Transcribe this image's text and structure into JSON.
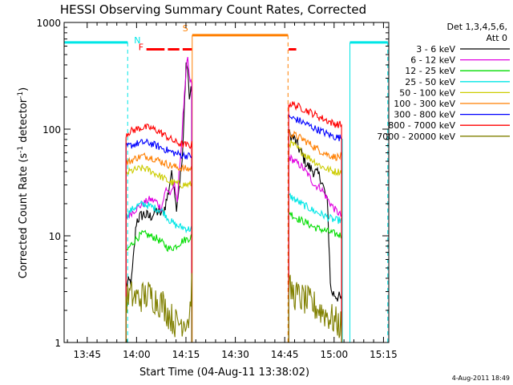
{
  "chart_data": {
    "type": "line",
    "title": "HESSI Observing Summary Count Rates, Corrected",
    "xlabel": "Start Time (04-Aug-11 13:38:02)",
    "ylabel_main": "Corrected Count Rate (s",
    "ylabel_sup1": "-1",
    "ylabel_mid": " detector",
    "ylabel_sup2": "-1",
    "ylabel_end": ")",
    "yscale": "log",
    "ylim": [
      1,
      1000
    ],
    "xlim_minutes": [
      38.0,
      86.5
    ],
    "x_ticks": [
      {
        "m": 45,
        "label": "13:45"
      },
      {
        "m": 60,
        "label": "14:00"
      },
      {
        "m": 75,
        "label": "14:15"
      },
      {
        "m": 90,
        "label": "14:30"
      },
      {
        "m": 105,
        "label": "14:45"
      },
      {
        "m": 120,
        "label": "15:00"
      },
      {
        "m": 135,
        "label": "15:15"
      }
    ],
    "y_ticks": [
      {
        "v": 1,
        "label": "1"
      },
      {
        "v": 10,
        "label": "10"
      },
      {
        "v": 100,
        "label": "100"
      },
      {
        "v": 1000,
        "label": "1000"
      }
    ],
    "legend": {
      "header1": "Det 1,3,4,5,6,",
      "header2": "Att 0",
      "entries": [
        {
          "label": "3 - 6 keV",
          "color": "#000000"
        },
        {
          "label": "6 - 12 keV",
          "color": "#e000e0"
        },
        {
          "label": "12 - 25 keV",
          "color": "#00dd00"
        },
        {
          "label": "25 - 50 keV",
          "color": "#00e6e6"
        },
        {
          "label": "50 - 100 keV",
          "color": "#cccc00"
        },
        {
          "label": "100 - 300 keV",
          "color": "#ff7f00"
        },
        {
          "label": "300 - 800 keV",
          "color": "#0000ff"
        },
        {
          "label": "800 - 7000 keV",
          "color": "#ff0000"
        },
        {
          "label": "7000 - 20000 keV",
          "color": "#808000"
        }
      ]
    },
    "segments": [
      {
        "start": 56.8,
        "end": 76.9
      },
      {
        "start": 106.2,
        "end": 122.5
      }
    ],
    "series": [
      {
        "name": "3 - 6 keV",
        "color": "#000000",
        "points": [
          [
            56.8,
            3.5
          ],
          [
            58.5,
            3.8
          ],
          [
            60,
            14
          ],
          [
            62,
            16
          ],
          [
            64,
            15
          ],
          [
            66,
            17
          ],
          [
            68,
            16
          ],
          [
            69.5,
            24
          ],
          [
            70.5,
            38
          ],
          [
            71.5,
            30
          ],
          [
            72,
            18
          ],
          [
            73,
            30
          ],
          [
            74,
            55
          ],
          [
            75,
            420
          ],
          [
            75.5,
            380
          ],
          [
            76,
            200
          ],
          [
            76.9,
            240
          ],
          [
            106.2,
            90
          ],
          [
            108,
            80
          ],
          [
            110,
            60
          ],
          [
            112,
            45
          ],
          [
            114,
            40
          ],
          [
            116,
            35
          ],
          [
            118,
            20
          ],
          [
            119,
            3
          ],
          [
            122.5,
            2.5
          ]
        ]
      },
      {
        "name": "6 - 12 keV",
        "color": "#e000e0",
        "points": [
          [
            56.8,
            15
          ],
          [
            58,
            16
          ],
          [
            60,
            18
          ],
          [
            62,
            20
          ],
          [
            64,
            22
          ],
          [
            66,
            21
          ],
          [
            67.5,
            18
          ],
          [
            69,
            28
          ],
          [
            70.5,
            24
          ],
          [
            71.5,
            32
          ],
          [
            72.5,
            20
          ],
          [
            73,
            45
          ],
          [
            73.5,
            60
          ],
          [
            74,
            120
          ],
          [
            75.5,
            500
          ],
          [
            76,
            300
          ],
          [
            76.9,
            260
          ],
          [
            106.2,
            55
          ],
          [
            108,
            50
          ],
          [
            110,
            45
          ],
          [
            112,
            38
          ],
          [
            114,
            30
          ],
          [
            116,
            28
          ],
          [
            117,
            25
          ],
          [
            118,
            22
          ],
          [
            120,
            18
          ],
          [
            122.5,
            15
          ]
        ]
      },
      {
        "name": "12 - 25 keV",
        "color": "#00dd00",
        "points": [
          [
            56.8,
            7
          ],
          [
            58,
            8
          ],
          [
            60,
            9.5
          ],
          [
            62,
            10.5
          ],
          [
            64,
            10
          ],
          [
            66,
            9.5
          ],
          [
            68,
            8.5
          ],
          [
            70,
            7.5
          ],
          [
            72,
            8
          ],
          [
            74,
            9
          ],
          [
            76,
            9.5
          ],
          [
            76.9,
            10
          ],
          [
            106.2,
            17
          ],
          [
            108,
            15
          ],
          [
            110,
            14
          ],
          [
            112,
            13
          ],
          [
            114,
            12
          ],
          [
            116,
            11.5
          ],
          [
            118,
            11
          ],
          [
            120,
            10.5
          ],
          [
            122.5,
            10
          ]
        ]
      },
      {
        "name": "25 - 50 keV",
        "color": "#00e6e6",
        "points": [
          [
            56.8,
            15
          ],
          [
            58,
            17
          ],
          [
            60,
            19
          ],
          [
            62,
            20
          ],
          [
            64,
            19
          ],
          [
            66,
            18
          ],
          [
            68,
            17
          ],
          [
            70,
            14
          ],
          [
            72,
            12.5
          ],
          [
            74,
            12
          ],
          [
            76,
            11.5
          ],
          [
            76.9,
            12
          ],
          [
            106.2,
            24
          ],
          [
            108,
            22
          ],
          [
            110,
            20
          ],
          [
            112,
            18.5
          ],
          [
            114,
            17
          ],
          [
            116,
            16
          ],
          [
            118,
            15
          ],
          [
            120,
            14
          ],
          [
            122.5,
            14
          ]
        ]
      },
      {
        "name": "50 - 100 keV",
        "color": "#cccc00",
        "points": [
          [
            56.8,
            38
          ],
          [
            58,
            40
          ],
          [
            60,
            42
          ],
          [
            62,
            43
          ],
          [
            64,
            41
          ],
          [
            66,
            38
          ],
          [
            68,
            35
          ],
          [
            70,
            32
          ],
          [
            72,
            31
          ],
          [
            74,
            30
          ],
          [
            76,
            30
          ],
          [
            76.9,
            31
          ],
          [
            106.2,
            75
          ],
          [
            108,
            70
          ],
          [
            110,
            62
          ],
          [
            112,
            55
          ],
          [
            114,
            50
          ],
          [
            116,
            45
          ],
          [
            118,
            42
          ],
          [
            120,
            40
          ],
          [
            122.5,
            40
          ]
        ]
      },
      {
        "name": "100 - 300 keV",
        "color": "#ff7f00",
        "points": [
          [
            56.8,
            48
          ],
          [
            58,
            50
          ],
          [
            60,
            54
          ],
          [
            62,
            56
          ],
          [
            64,
            55
          ],
          [
            66,
            52
          ],
          [
            68,
            49
          ],
          [
            70,
            46
          ],
          [
            72,
            44
          ],
          [
            74,
            43
          ],
          [
            76,
            42
          ],
          [
            76.9,
            43
          ],
          [
            106.2,
            92
          ],
          [
            108,
            88
          ],
          [
            110,
            82
          ],
          [
            112,
            75
          ],
          [
            114,
            68
          ],
          [
            116,
            62
          ],
          [
            118,
            58
          ],
          [
            120,
            55
          ],
          [
            122.5,
            55
          ]
        ]
      },
      {
        "name": "300 - 800 keV",
        "color": "#0000ff",
        "points": [
          [
            56.8,
            68
          ],
          [
            58,
            70
          ],
          [
            60,
            73
          ],
          [
            62,
            75
          ],
          [
            64,
            74
          ],
          [
            66,
            70
          ],
          [
            68,
            66
          ],
          [
            70,
            62
          ],
          [
            72,
            59
          ],
          [
            74,
            57
          ],
          [
            76,
            56
          ],
          [
            76.9,
            57
          ],
          [
            106.2,
            130
          ],
          [
            108,
            125
          ],
          [
            110,
            118
          ],
          [
            112,
            110
          ],
          [
            114,
            102
          ],
          [
            116,
            96
          ],
          [
            118,
            90
          ],
          [
            120,
            85
          ],
          [
            122.5,
            82
          ]
        ]
      },
      {
        "name": "800 - 7000 keV",
        "color": "#ff0000",
        "points": [
          [
            56.8,
            90
          ],
          [
            58,
            95
          ],
          [
            60,
            100
          ],
          [
            62,
            104
          ],
          [
            64,
            103
          ],
          [
            66,
            98
          ],
          [
            68,
            90
          ],
          [
            70,
            82
          ],
          [
            72,
            75
          ],
          [
            74,
            72
          ],
          [
            76,
            70
          ],
          [
            76.9,
            72
          ],
          [
            106.2,
            175
          ],
          [
            108,
            168
          ],
          [
            110,
            158
          ],
          [
            112,
            148
          ],
          [
            114,
            138
          ],
          [
            116,
            128
          ],
          [
            118,
            120
          ],
          [
            120,
            112
          ],
          [
            122.5,
            110
          ]
        ]
      },
      {
        "name": "7000 - 20000 keV",
        "color": "#808000",
        "points": [
          [
            56.8,
            2.5
          ],
          [
            58,
            2.8
          ],
          [
            60,
            2.6
          ],
          [
            62,
            2.7
          ],
          [
            64,
            2.8
          ],
          [
            66,
            2.5
          ],
          [
            68,
            2.3
          ],
          [
            70,
            1.8
          ],
          [
            72,
            1.5
          ],
          [
            74,
            1.6
          ],
          [
            76,
            1.7
          ],
          [
            76.9,
            4
          ],
          [
            106.2,
            3.2
          ],
          [
            108,
            2.8
          ],
          [
            110,
            2.6
          ],
          [
            112,
            2.4
          ],
          [
            114,
            2.2
          ],
          [
            116,
            2
          ],
          [
            118,
            1.8
          ],
          [
            120,
            1.6
          ],
          [
            122.5,
            1.4
          ]
        ]
      }
    ],
    "flags": [
      {
        "name": "night-flag",
        "label": "N",
        "color": "#00e6e6",
        "y": 650,
        "bars": [
          [
            38.0,
            57.3
          ],
          [
            124.8,
            136.3
          ]
        ],
        "vlines": [
          [
            57.3,
            "dashed"
          ],
          [
            124.8,
            "solid"
          ],
          [
            136.3,
            "dashed"
          ]
        ]
      },
      {
        "name": "flare-flag",
        "label": "F",
        "color": "#ff0000",
        "y": 560,
        "bars": [
          [
            63.0,
            68.5
          ],
          [
            69.5,
            73.0
          ],
          [
            74.0,
            76.8
          ],
          [
            106.2,
            108.5
          ]
        ],
        "vlines": []
      },
      {
        "name": "saa-flag",
        "label": "S",
        "color": "#ff7f00",
        "y": 760,
        "bars": [
          [
            76.9,
            106.0
          ]
        ],
        "vlines": [
          [
            76.9,
            "solid"
          ],
          [
            106.0,
            "dashed"
          ]
        ]
      }
    ],
    "segment_vlines": [
      {
        "m": 56.8,
        "color": "#00e6e6"
      },
      {
        "m": 122.5,
        "color": "#00e6e6"
      }
    ],
    "footer_timestamp": "4-Aug-2011 18:49"
  }
}
